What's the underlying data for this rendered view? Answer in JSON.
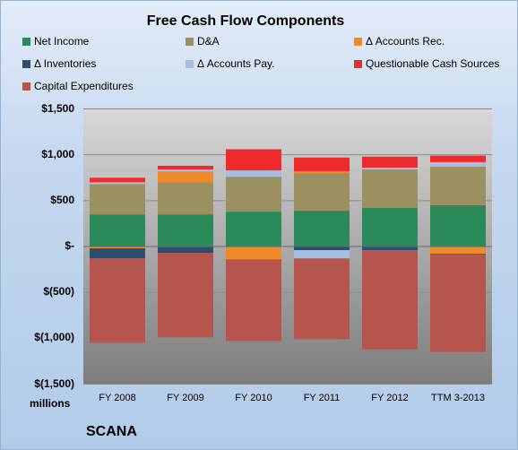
{
  "colors": {
    "net_income": "#2a8a5a",
    "da": "#9a9060",
    "accounts_rec": "#ee8a2a",
    "inventories": "#2e4d72",
    "accounts_pay": "#a7bee0",
    "questionable": "#ee2a2a",
    "capex": "#b5554d"
  },
  "chart_data": {
    "type": "bar",
    "stacked": true,
    "title": "Free Cash Flow Components",
    "xlabel": "",
    "ylabel": "millions",
    "ylim": [
      -1500,
      1500
    ],
    "yticks": [
      1500,
      1000,
      500,
      0,
      -500,
      -1000,
      -1500
    ],
    "ytick_labels": [
      "$1,500",
      "$1,000",
      "$500",
      "$-",
      "$(500)",
      "$(1,000)",
      "$(1,500)"
    ],
    "grid": true,
    "legend_position": "top",
    "categories": [
      "FY 2008",
      "FY 2009",
      "FY 2010",
      "FY 2011",
      "FY 2012",
      "TTM 3-2013"
    ],
    "series": [
      {
        "name": "Net Income",
        "key": "net_income",
        "values": [
          350,
          350,
          380,
          390,
          420,
          450
        ]
      },
      {
        "name": "D&A",
        "key": "da",
        "values": [
          330,
          350,
          380,
          410,
          420,
          420
        ]
      },
      {
        "name": "Δ Accounts Rec.",
        "key": "accounts_rec",
        "values": [
          -20,
          120,
          -140,
          20,
          0,
          -80
        ]
      },
      {
        "name": "Δ Inventories",
        "key": "inventories",
        "values": [
          -110,
          -70,
          10,
          -40,
          -40,
          -10
        ]
      },
      {
        "name": "Δ Accounts Pay.",
        "key": "accounts_pay",
        "values": [
          20,
          20,
          70,
          -90,
          20,
          50
        ]
      },
      {
        "name": "Questionable Cash Sources",
        "key": "questionable",
        "values": [
          50,
          40,
          230,
          150,
          120,
          70
        ]
      },
      {
        "name": "Capital Expenditures",
        "key": "capex",
        "values": [
          -920,
          -920,
          -890,
          -880,
          -1080,
          -1060
        ]
      }
    ]
  },
  "footer": {
    "units_label": "millions",
    "company_label": "SCANA"
  }
}
